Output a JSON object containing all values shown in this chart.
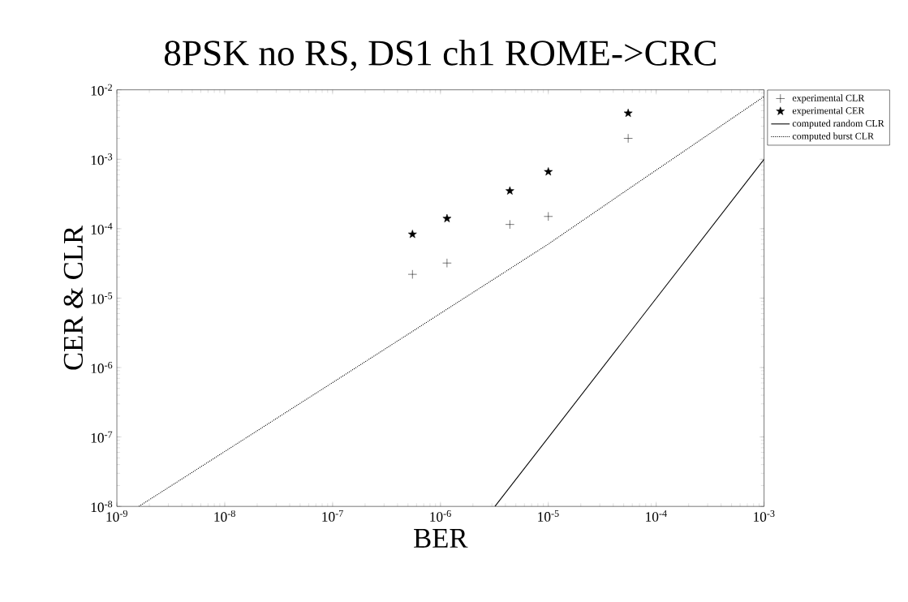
{
  "chart_data": {
    "type": "scatter",
    "title": "8PSK no RS, DS1 ch1 ROME->CRC",
    "xlabel": "BER",
    "ylabel": "CER & CLR",
    "log": "xy",
    "legend": "top right",
    "xlim": [
      1e-09,
      0.001
    ],
    "ylim": [
      1e-08,
      0.01
    ],
    "xticks": [
      {
        "value": 1e-09,
        "label": "10$^{-9}$"
      },
      {
        "value": 1e-08,
        "label": "10$^{-8}$"
      },
      {
        "value": 1e-07,
        "label": "10$^{-7}$"
      },
      {
        "value": 1e-06,
        "label": "10$^{-6}$"
      },
      {
        "value": 1e-05,
        "label": "10$^{-5}$"
      },
      {
        "value": 0.0001,
        "label": "10$^{-4}$"
      },
      {
        "value": 0.001,
        "label": "10$^{-3}$"
      }
    ],
    "yticks": [
      {
        "value": 1e-08,
        "label": "10$^{-8}$"
      },
      {
        "value": 1e-07,
        "label": "10$^{-7}$"
      },
      {
        "value": 1e-06,
        "label": "10$^{-6}$"
      },
      {
        "value": 1e-05,
        "label": "10$^{-5}$"
      },
      {
        "value": 0.0001,
        "label": "10$^{-4}$"
      },
      {
        "value": 0.001,
        "label": "10$^{-3}$"
      },
      {
        "value": 0.01,
        "label": "10$^{-2}$"
      }
    ],
    "series": [
      {
        "name": "experimental CLR",
        "marker": "cross",
        "color": "#000000",
        "x": [
          5.5e-07,
          1.15e-06,
          4.4e-06,
          1e-05,
          5.5e-05
        ],
        "values": [
          2.2e-05,
          3.2e-05,
          0.000115,
          0.00015,
          0.002
        ]
      },
      {
        "name": "experimental CER",
        "marker": "star",
        "color": "#000000",
        "x": [
          5.5e-07,
          1.15e-06,
          4.4e-06,
          1e-05,
          5.5e-05
        ],
        "values": [
          8.3e-05,
          0.00014,
          0.00035,
          0.00066,
          0.0046
        ]
      },
      {
        "name": "computed random CLR",
        "type": "line",
        "marker": "none",
        "line_style": "solid",
        "color": "#000000",
        "x": [
          3.2e-06,
          0.001
        ],
        "values": [
          1e-08,
          0.001
        ]
      },
      {
        "name": "computed burst CLR",
        "type": "line",
        "marker": "none",
        "line_style": "dotted",
        "color": "#000000",
        "x": [
          1.6e-09,
          2.4e-07,
          1e-05,
          4.8e-05,
          0.001
        ],
        "values": [
          1e-08,
          1.45e-06,
          6e-05,
          0.00032,
          0.008
        ]
      }
    ]
  }
}
